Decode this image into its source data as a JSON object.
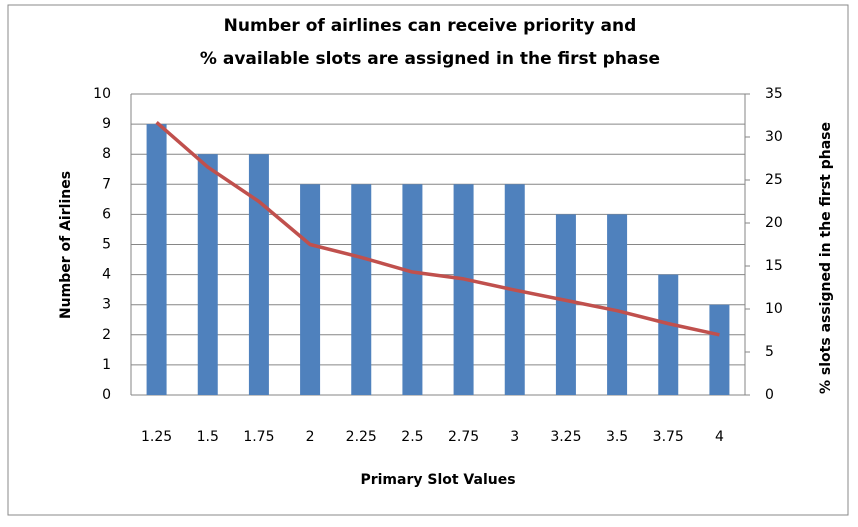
{
  "chart_data": {
    "type": "bar",
    "title": [
      "Number of airlines can receive priority and",
      "%  available slots are assigned in the first phase"
    ],
    "x_label": "Primary Slot Values",
    "y_label": "Number of Airlines",
    "y2_label": "% slots assigned  in the first phase",
    "categories": [
      "1.25",
      "1.5",
      "1.75",
      "2",
      "2.25",
      "2.5",
      "2.75",
      "3",
      "3.25",
      "3.5",
      "3.75",
      "4"
    ],
    "series": [
      {
        "type": "bar",
        "color": "#4f81bd",
        "values": [
          9,
          8,
          8,
          7,
          7,
          7,
          7,
          7,
          6,
          6,
          4,
          3
        ]
      },
      {
        "type": "line",
        "axis": "y2",
        "color": "#c0504d",
        "values": [
          31.7,
          26.5,
          22.5,
          17.5,
          16,
          14.3,
          13.5,
          12.2,
          11,
          9.8,
          8.3,
          7
        ]
      }
    ],
    "ylim": [
      0,
      10
    ],
    "yticks": [
      0,
      1,
      2,
      3,
      4,
      5,
      6,
      7,
      8,
      9,
      10
    ],
    "y2lim": [
      0,
      35
    ],
    "y2ticks": [
      0,
      5,
      10,
      15,
      20,
      25,
      30,
      35
    ],
    "grid": true
  }
}
